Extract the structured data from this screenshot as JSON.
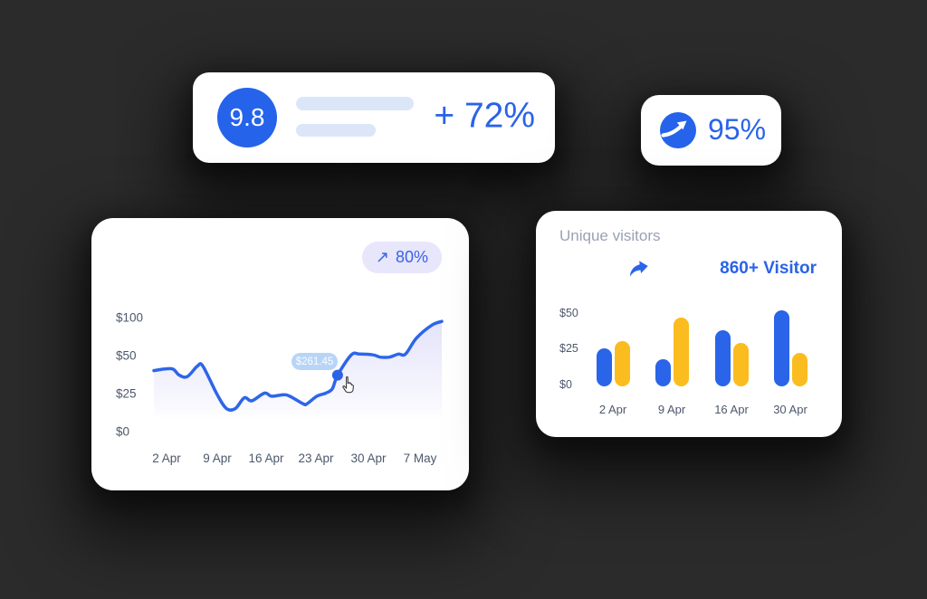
{
  "page": {
    "background": "#2B2B2B",
    "card_background": "#FFFFFF",
    "accent_blue": "#2A64E8",
    "accent_yellow": "#FBBC1F"
  },
  "score_card": {
    "score": "9.8",
    "change": "+ 72%"
  },
  "rate_card": {
    "value": "95%",
    "icon": "trend-up-arrow"
  },
  "line_card": {
    "badge_arrow": "↗"
  },
  "bar_card": {
    "title": "Unique visitors",
    "visitor_count": "860+ Visitor",
    "icon": "share-arrow"
  },
  "chart_data": [
    {
      "type": "line",
      "title": "",
      "x_tick_labels": [
        "2 Apr",
        "9 Apr",
        "16 Apr",
        "23 Apr",
        "30 Apr",
        "7 May"
      ],
      "y_tick_labels": [
        "$100",
        "$50",
        "$25",
        "$0"
      ],
      "y_ticks": [
        100,
        50,
        25,
        0
      ],
      "line_color": "#2C66E9",
      "grid": false,
      "legend": false,
      "badge_label": "80%",
      "tooltip_label": "$261.45",
      "weekly_values": [
        [
          "2 Apr",
          40
        ],
        [
          "9 Apr",
          15
        ],
        [
          "16 Apr",
          24
        ],
        [
          "23 Apr",
          23
        ],
        [
          "30 Apr",
          50
        ],
        [
          "7 May",
          95
        ]
      ],
      "samples": [
        [
          0,
          40
        ],
        [
          0.035,
          41
        ],
        [
          0.066,
          41
        ],
        [
          0.088,
          37
        ],
        [
          0.116,
          36
        ],
        [
          0.151,
          43
        ],
        [
          0.17,
          43
        ],
        [
          0.22,
          24
        ],
        [
          0.252,
          15
        ],
        [
          0.283,
          15
        ],
        [
          0.314,
          22
        ],
        [
          0.34,
          20
        ],
        [
          0.384,
          25
        ],
        [
          0.409,
          23
        ],
        [
          0.45,
          24
        ],
        [
          0.472,
          23
        ],
        [
          0.519,
          18
        ],
        [
          0.531,
          18
        ],
        [
          0.566,
          23
        ],
        [
          0.597,
          25
        ],
        [
          0.62,
          28
        ],
        [
          0.638,
          37
        ],
        [
          0.686,
          51
        ],
        [
          0.714,
          52
        ],
        [
          0.761,
          51
        ],
        [
          0.786,
          49
        ],
        [
          0.818,
          49
        ],
        [
          0.849,
          52
        ],
        [
          0.874,
          52
        ],
        [
          0.912,
          73
        ],
        [
          0.965,
          90
        ],
        [
          1,
          95
        ]
      ],
      "highlight_index": 21
    },
    {
      "type": "bar",
      "title": "Unique visitors",
      "categories": [
        "2 Apr",
        "9 Apr",
        "16 Apr",
        "30 Apr"
      ],
      "series": [
        {
          "name": "blue",
          "color": "#2A64E8",
          "values": [
            25,
            18,
            38,
            52
          ]
        },
        {
          "name": "yellow",
          "color": "#FBBC1F",
          "values": [
            30,
            47,
            29,
            22
          ]
        }
      ],
      "y_tick_labels": [
        "$50",
        "$25",
        "$0"
      ],
      "y_ticks": [
        50,
        25,
        0
      ],
      "ylim": [
        0,
        55
      ],
      "grid": false,
      "legend": false
    }
  ]
}
